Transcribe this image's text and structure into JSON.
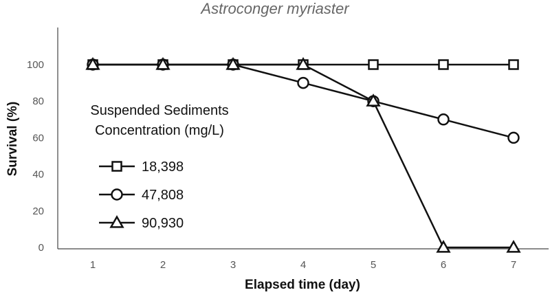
{
  "chart_data": {
    "type": "line",
    "title": "Astroconger myriaster",
    "xlabel": "Elapsed time (day)",
    "ylabel": "Survival (%)",
    "x": [
      1,
      2,
      3,
      4,
      5,
      6,
      7
    ],
    "xlim": [
      0.5,
      7.5
    ],
    "ylim": [
      0,
      100
    ],
    "yticks": [
      0,
      20,
      40,
      60,
      80,
      100
    ],
    "grid": false,
    "legend": {
      "title_lines": [
        "Suspended Sediments",
        "Concentration (mg/L)"
      ],
      "placement": "left"
    },
    "series": [
      {
        "name": "18,398",
        "marker": "square",
        "values": [
          100,
          100,
          100,
          100,
          100,
          100,
          100
        ]
      },
      {
        "name": "47,808",
        "marker": "circle",
        "values": [
          100,
          100,
          100,
          90,
          80,
          70,
          60
        ]
      },
      {
        "name": "90,930",
        "marker": "triangle",
        "values": [
          100,
          100,
          100,
          100,
          80,
          0,
          0
        ]
      }
    ]
  }
}
